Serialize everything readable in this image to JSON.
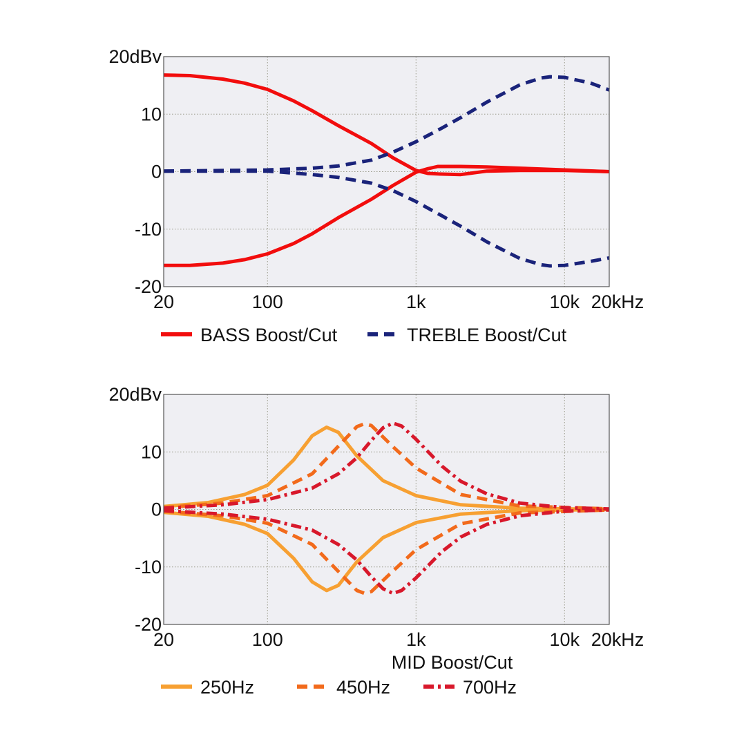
{
  "colors": {
    "plot_background": "#efeff3",
    "grid": "#9a9a8a",
    "frame": "#555555",
    "bass": "#f20d0d",
    "treble": "#1a237a",
    "mid_250": "#f7a032",
    "mid_450": "#f26a1b",
    "mid_700": "#d8182b"
  },
  "chart_data": [
    {
      "type": "line",
      "title": "",
      "xscale": "log",
      "xlim": [
        20,
        20000
      ],
      "ylim": [
        -20,
        20
      ],
      "grid": true,
      "legend_placement": "bottom",
      "x_tick_values": [
        20,
        100,
        1000,
        10000,
        20000
      ],
      "x_tick_labels": [
        "20",
        "100",
        "1k",
        "10k",
        "20kHz"
      ],
      "y_tick_values": [
        20,
        10,
        0,
        -10,
        -20
      ],
      "y_tick_labels": [
        "20dBv",
        "10",
        "0",
        "-10",
        "-20"
      ],
      "xlabel": "",
      "legend": [
        {
          "label": "BASS Boost/Cut",
          "style": "solid",
          "color_key": "bass"
        },
        {
          "label": "TREBLE Boost/Cut",
          "style": "dashed",
          "color_key": "treble"
        }
      ],
      "series": [
        {
          "name": "BASS Boost/Cut",
          "style": "solid",
          "color_key": "bass",
          "x": [
            20,
            30,
            50,
            70,
            100,
            150,
            200,
            300,
            500,
            700,
            1000,
            1200,
            1400,
            2000,
            3000,
            5000,
            10000,
            20000
          ],
          "y": [
            16.8,
            16.7,
            16.1,
            15.4,
            14.3,
            12.3,
            10.6,
            8.0,
            4.9,
            2.4,
            0.2,
            -0.3,
            -0.4,
            -0.5,
            0.1,
            0.2,
            0.2,
            0.0
          ]
        },
        {
          "name": "BASS Boost/Cut",
          "style": "solid",
          "color_key": "bass",
          "x": [
            20,
            30,
            50,
            70,
            100,
            150,
            200,
            300,
            500,
            700,
            1000,
            1200,
            1400,
            2000,
            3000,
            5000,
            10000,
            20000
          ],
          "y": [
            -16.3,
            -16.3,
            -15.9,
            -15.3,
            -14.3,
            -12.5,
            -10.8,
            -8.0,
            -4.8,
            -2.4,
            -0.1,
            0.5,
            0.9,
            0.9,
            0.8,
            0.6,
            0.3,
            0.0
          ]
        },
        {
          "name": "TREBLE Boost/Cut",
          "style": "dashed",
          "color_key": "treble",
          "x": [
            20,
            50,
            100,
            200,
            300,
            500,
            700,
            1000,
            1500,
            2000,
            3000,
            5000,
            7000,
            8000,
            10000,
            15000,
            20000
          ],
          "y": [
            0.1,
            0.2,
            0.3,
            0.6,
            1.0,
            2.0,
            3.4,
            5.2,
            7.6,
            9.4,
            12.1,
            15.1,
            16.3,
            16.5,
            16.4,
            15.4,
            14.2
          ]
        },
        {
          "name": "TREBLE Boost/Cut",
          "style": "dashed",
          "color_key": "treble",
          "x": [
            20,
            50,
            100,
            200,
            300,
            500,
            700,
            1000,
            1500,
            2000,
            3000,
            5000,
            7000,
            8000,
            10000,
            15000,
            20000
          ],
          "y": [
            0.1,
            0.1,
            0.1,
            -0.5,
            -1.0,
            -2.0,
            -3.3,
            -5.2,
            -7.7,
            -9.5,
            -12.2,
            -15.1,
            -16.2,
            -16.4,
            -16.3,
            -15.6,
            -15.0
          ]
        }
      ]
    },
    {
      "type": "line",
      "title": "",
      "xscale": "log",
      "xlim": [
        20,
        20000
      ],
      "ylim": [
        -20,
        20
      ],
      "grid": true,
      "legend_placement": "bottom",
      "x_tick_values": [
        20,
        100,
        1000,
        10000,
        20000
      ],
      "x_tick_labels": [
        "20",
        "100",
        "1k",
        "10k",
        "20kHz"
      ],
      "y_tick_values": [
        20,
        10,
        0,
        -10,
        -20
      ],
      "y_tick_labels": [
        "20dBv",
        "10",
        "0",
        "-10",
        "-20"
      ],
      "xlabel": "MID Boost/Cut",
      "legend": [
        {
          "label": "250Hz",
          "style": "solid",
          "color_key": "mid_250"
        },
        {
          "label": "450Hz",
          "style": "dashed",
          "color_key": "mid_450"
        },
        {
          "label": "700Hz",
          "style": "dashdot",
          "color_key": "mid_700"
        }
      ],
      "series": [
        {
          "name": "250Hz",
          "style": "solid",
          "color_key": "mid_250",
          "center": 250,
          "gain": 14.3,
          "x": [
            20,
            40,
            70,
            100,
            150,
            200,
            250,
            300,
            400,
            600,
            1000,
            2000,
            5000,
            20000
          ],
          "y": [
            0.5,
            1.2,
            2.6,
            4.2,
            8.6,
            12.8,
            14.3,
            13.4,
            9.3,
            5.0,
            2.4,
            0.8,
            0.2,
            0.0
          ]
        },
        {
          "name": "250Hz",
          "style": "solid",
          "color_key": "mid_250",
          "center": 250,
          "gain": -14.1,
          "x": [
            20,
            40,
            70,
            100,
            150,
            200,
            250,
            300,
            400,
            600,
            1000,
            2000,
            5000,
            20000
          ],
          "y": [
            -0.5,
            -1.2,
            -2.6,
            -4.2,
            -8.5,
            -12.6,
            -14.1,
            -13.2,
            -9.1,
            -4.9,
            -2.3,
            -0.8,
            -0.2,
            0.0
          ]
        },
        {
          "name": "450Hz",
          "style": "dashed",
          "color_key": "mid_450",
          "center": 450,
          "gain": 14.9,
          "x": [
            20,
            50,
            100,
            200,
            300,
            400,
            450,
            500,
            700,
            1000,
            2000,
            5000,
            20000
          ],
          "y": [
            0.3,
            1.1,
            2.4,
            6.2,
            11.0,
            14.4,
            14.9,
            14.6,
            10.9,
            7.2,
            2.6,
            0.6,
            0.1
          ]
        },
        {
          "name": "450Hz",
          "style": "dashed",
          "color_key": "mid_450",
          "center": 450,
          "gain": -14.6,
          "x": [
            20,
            50,
            100,
            200,
            300,
            400,
            450,
            500,
            700,
            1000,
            2000,
            5000,
            20000
          ],
          "y": [
            -0.3,
            -1.1,
            -2.4,
            -6.1,
            -10.8,
            -14.1,
            -14.6,
            -14.3,
            -10.7,
            -7.0,
            -2.5,
            -0.6,
            -0.1
          ]
        },
        {
          "name": "700Hz",
          "style": "dashdot",
          "color_key": "mid_700",
          "center": 700,
          "gain": 15.0,
          "x": [
            20,
            50,
            100,
            200,
            300,
            400,
            500,
            600,
            700,
            800,
            1000,
            1500,
            2000,
            3000,
            5000,
            10000,
            20000
          ],
          "y": [
            0.2,
            0.8,
            1.7,
            3.7,
            6.2,
            9.0,
            12.0,
            14.2,
            15.0,
            14.5,
            12.2,
            7.5,
            4.9,
            2.7,
            1.1,
            0.3,
            0.1
          ]
        },
        {
          "name": "700Hz",
          "style": "dashdot",
          "color_key": "mid_700",
          "center": 700,
          "gain": -14.6,
          "x": [
            20,
            50,
            100,
            200,
            300,
            400,
            500,
            600,
            700,
            800,
            1000,
            1500,
            2000,
            3000,
            5000,
            10000,
            20000
          ],
          "y": [
            -0.2,
            -0.8,
            -1.7,
            -3.6,
            -6.1,
            -8.8,
            -11.7,
            -13.8,
            -14.6,
            -14.1,
            -11.9,
            -7.3,
            -4.8,
            -2.6,
            -1.1,
            -0.3,
            -0.1
          ]
        }
      ]
    }
  ]
}
